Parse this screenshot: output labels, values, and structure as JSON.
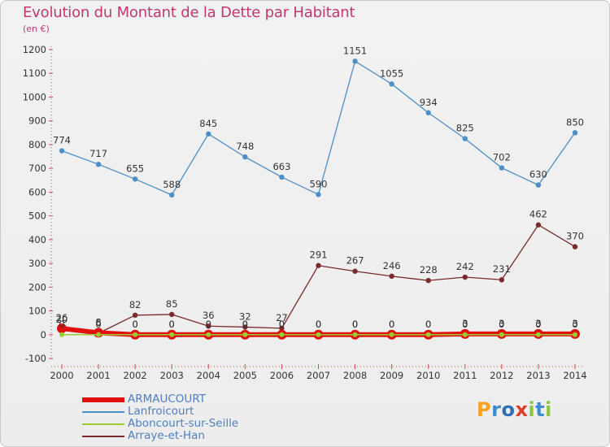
{
  "title": "Evolution du Montant de la Dette par Habitant",
  "subtitle": "(en €)",
  "logo": {
    "text": "Proxiti",
    "letter_colors": [
      "#f7a11e",
      "#3d8ccf",
      "#2d6fb8",
      "#e13b2a",
      "#8dc63f",
      "#3d8ccf",
      "#8dc63f"
    ]
  },
  "chart_data": {
    "type": "line",
    "title": "Evolution du Montant de la Dette par Habitant",
    "subtitle": "(en €)",
    "xlabel": "",
    "ylabel": "",
    "x": [
      "2000",
      "2001",
      "2002",
      "2003",
      "2004",
      "2005",
      "2006",
      "2007",
      "2008",
      "2009",
      "2010",
      "2011",
      "2012",
      "2013",
      "2014"
    ],
    "ylim": [
      -100,
      1200
    ],
    "yticks": [
      -100,
      0,
      100,
      200,
      300,
      400,
      500,
      600,
      700,
      800,
      900,
      1000,
      1100,
      1200
    ],
    "grid": false,
    "legend_position": "bottom-left",
    "series": [
      {
        "name": "Lanfroicourt",
        "color": "#4d8fc8",
        "values": [
          774,
          717,
          655,
          588,
          845,
          748,
          663,
          590,
          1151,
          1055,
          934,
          825,
          702,
          630,
          850
        ],
        "labels": [
          "774",
          "717",
          "655",
          "588",
          "845",
          "748",
          "663",
          "590",
          "1151",
          "1055",
          "934",
          "825",
          "702",
          "630",
          "850"
        ]
      },
      {
        "name": "Arraye-et-Han",
        "color": "#7a2a2a",
        "values": [
          20,
          6,
          82,
          85,
          36,
          32,
          27,
          291,
          267,
          246,
          228,
          242,
          231,
          462,
          370
        ],
        "labels": [
          "20",
          "6",
          "82",
          "85",
          "36",
          "32",
          "27",
          "291",
          "267",
          "246",
          "228",
          "242",
          "231",
          "462",
          "370"
        ]
      },
      {
        "name": "Aboncourt-sur-Seille",
        "color": "#99cc33",
        "values": [
          0,
          0,
          0,
          0,
          0,
          0,
          0,
          0,
          0,
          0,
          0,
          0,
          0,
          0,
          0
        ],
        "labels": [
          "0",
          "0",
          "0",
          "0",
          "0",
          "0",
          "0",
          "0",
          "0",
          "0",
          "0",
          "0",
          "0",
          "0",
          "0"
        ]
      },
      {
        "name": "ARMAUCOURT",
        "color": "#e2100d",
        "values": [
          26,
          8,
          0,
          0,
          0,
          0,
          0,
          0,
          0,
          0,
          0,
          3,
          3,
          3,
          3
        ],
        "labels": [
          "26",
          "8",
          "0",
          "0",
          "0",
          "0",
          "0",
          "0",
          "0",
          "0",
          "0",
          "3",
          "3",
          "3",
          "3"
        ]
      }
    ],
    "legend": [
      {
        "name": "ARMAUCOURT",
        "color": "#e2100d",
        "thick": true
      },
      {
        "name": "Lanfroicourt",
        "color": "#4d8fc8",
        "thick": false
      },
      {
        "name": "Aboncourt-sur-Seille",
        "color": "#99cc33",
        "thick": false
      },
      {
        "name": "Arraye-et-Han",
        "color": "#7a2a2a",
        "thick": false
      }
    ]
  }
}
